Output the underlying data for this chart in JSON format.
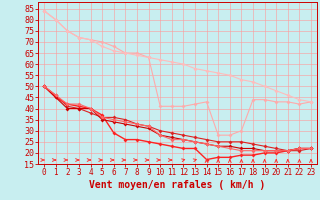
{
  "title": "",
  "xlabel": "Vent moyen/en rafales ( km/h )",
  "background_color": "#c8eef0",
  "grid_color": "#ff9999",
  "xlim": [
    -0.5,
    23.5
  ],
  "ylim": [
    15,
    88
  ],
  "yticks": [
    15,
    20,
    25,
    30,
    35,
    40,
    45,
    50,
    55,
    60,
    65,
    70,
    75,
    80,
    85
  ],
  "xticks": [
    0,
    1,
    2,
    3,
    4,
    5,
    6,
    7,
    8,
    9,
    10,
    11,
    12,
    13,
    14,
    15,
    16,
    17,
    18,
    19,
    20,
    21,
    22,
    23
  ],
  "lines": [
    {
      "x": [
        0,
        1,
        2,
        3,
        4,
        5,
        6,
        7,
        8,
        9,
        10,
        11,
        12,
        13,
        14,
        15,
        16,
        17,
        18,
        19,
        20,
        21,
        22,
        23
      ],
      "y": [
        84,
        80,
        75,
        72,
        71,
        70,
        68,
        65,
        65,
        63,
        41,
        41,
        41,
        42,
        43,
        28,
        28,
        30,
        44,
        44,
        43,
        43,
        42,
        43
      ],
      "color": "#ffaaaa",
      "lw": 0.8,
      "marker": "D",
      "ms": 2.0
    },
    {
      "x": [
        0,
        1,
        2,
        3,
        4,
        5,
        6,
        7,
        8,
        9,
        10,
        11,
        12,
        13,
        14,
        15,
        16,
        17,
        18,
        19,
        20,
        21,
        22,
        23
      ],
      "y": [
        84,
        80,
        75,
        72,
        71,
        68,
        66,
        65,
        64,
        63,
        62,
        61,
        60,
        58,
        57,
        56,
        55,
        53,
        52,
        50,
        48,
        46,
        44,
        43
      ],
      "color": "#ffbbbb",
      "lw": 0.8,
      "marker": "D",
      "ms": 2.0
    },
    {
      "x": [
        0,
        1,
        2,
        3,
        4,
        5,
        6,
        7,
        8,
        9,
        10,
        11,
        12,
        13,
        14,
        15,
        16,
        17,
        18,
        19,
        20,
        21,
        22,
        23
      ],
      "y": [
        50,
        46,
        41,
        40,
        38,
        36,
        36,
        35,
        33,
        32,
        30,
        29,
        28,
        27,
        26,
        25,
        25,
        25,
        24,
        23,
        22,
        21,
        21,
        22
      ],
      "color": "#dd2222",
      "lw": 0.8,
      "marker": "D",
      "ms": 2.0
    },
    {
      "x": [
        0,
        1,
        2,
        3,
        4,
        5,
        6,
        7,
        8,
        9,
        10,
        11,
        12,
        13,
        14,
        15,
        16,
        17,
        18,
        19,
        20,
        21,
        22,
        23
      ],
      "y": [
        50,
        45,
        42,
        41,
        40,
        37,
        29,
        26,
        26,
        25,
        24,
        23,
        22,
        22,
        17,
        18,
        18,
        19,
        19,
        20,
        20,
        21,
        22,
        22
      ],
      "color": "#ff2222",
      "lw": 1.0,
      "marker": "D",
      "ms": 2.0
    },
    {
      "x": [
        0,
        1,
        2,
        3,
        4,
        5,
        6,
        7,
        8,
        9,
        10,
        11,
        12,
        13,
        14,
        15,
        16,
        17,
        18,
        19,
        20,
        21,
        22,
        23
      ],
      "y": [
        50,
        45,
        40,
        40,
        40,
        35,
        34,
        33,
        32,
        31,
        28,
        27,
        26,
        25,
        24,
        23,
        23,
        22,
        22,
        21,
        21,
        21,
        22,
        22
      ],
      "color": "#cc0000",
      "lw": 0.8,
      "marker": "D",
      "ms": 2.0
    },
    {
      "x": [
        0,
        1,
        2,
        3,
        4,
        5,
        6,
        7,
        8,
        9,
        10,
        11,
        12,
        13,
        14,
        15,
        16,
        17,
        18,
        19,
        20,
        21,
        22,
        23
      ],
      "y": [
        50,
        46,
        42,
        42,
        40,
        36,
        35,
        34,
        33,
        32,
        28,
        26,
        26,
        25,
        24,
        23,
        22,
        21,
        21,
        21,
        21,
        21,
        22,
        22
      ],
      "color": "#ff6666",
      "lw": 0.8,
      "marker": "D",
      "ms": 2.0
    }
  ],
  "arrow_color": "#ff3333",
  "xlabel_color": "#cc0000",
  "xlabel_fontsize": 7,
  "ytick_color": "#cc0000",
  "xtick_color": "#cc0000",
  "ytick_fontsize": 6,
  "xtick_fontsize": 5.5,
  "spine_color": "#cc0000"
}
